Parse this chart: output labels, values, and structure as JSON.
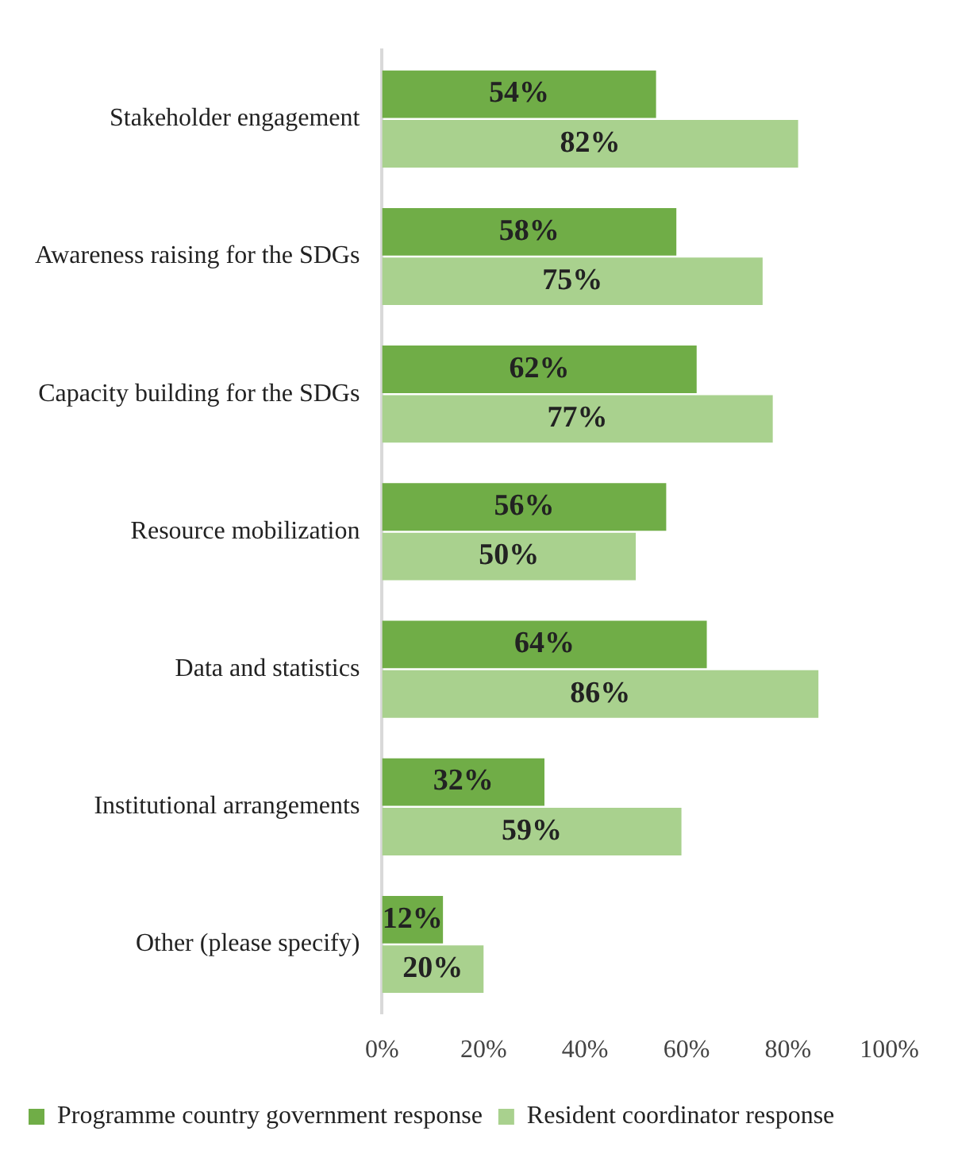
{
  "chart_data": {
    "type": "bar",
    "orientation": "horizontal",
    "categories": [
      "Stakeholder engagement",
      "Awareness raising for the SDGs",
      "Capacity building for the SDGs",
      "Resource mobilization",
      "Data and statistics",
      "Institutional arrangements",
      "Other (please specify)"
    ],
    "series": [
      {
        "name": "Programme country government response",
        "color": "#70ad47",
        "values": [
          54,
          58,
          62,
          56,
          64,
          32,
          12
        ],
        "value_labels": [
          "54%",
          "58%",
          "62%",
          "56%",
          "64%",
          "32%",
          "12%"
        ]
      },
      {
        "name": "Resident coordinator response",
        "color": "#a9d18e",
        "values": [
          82,
          75,
          77,
          50,
          86,
          59,
          20
        ],
        "value_labels": [
          "82%",
          "75%",
          "77%",
          "50%",
          "86%",
          "59%",
          "20%"
        ]
      }
    ],
    "xlim": [
      0,
      100
    ],
    "xticks": [
      {
        "value": 0,
        "label": "0%"
      },
      {
        "value": 20,
        "label": "20%"
      },
      {
        "value": 40,
        "label": "40%"
      },
      {
        "value": 60,
        "label": "60%"
      },
      {
        "value": 80,
        "label": "80%"
      },
      {
        "value": 100,
        "label": "100%"
      }
    ],
    "grid": false,
    "legend": "bottom"
  }
}
